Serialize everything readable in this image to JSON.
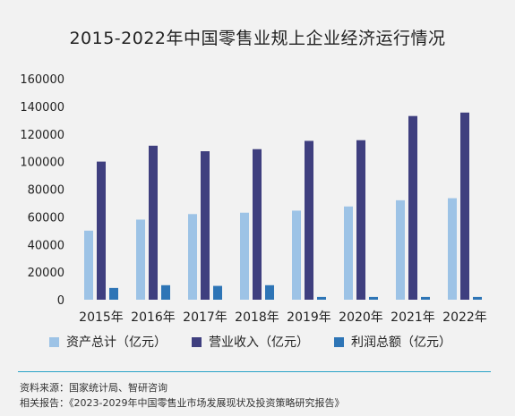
{
  "chart_data": {
    "type": "bar",
    "title": "2015-2022年中国零售业规上企业经济运行情况",
    "categories": [
      "2015年",
      "2016年",
      "2017年",
      "2018年",
      "2019年",
      "2020年",
      "2021年",
      "2022年"
    ],
    "series": [
      {
        "name": "资产总计（亿元）",
        "color": "#9dc3e6",
        "values": [
          50000,
          58000,
          62000,
          63000,
          64500,
          67500,
          72000,
          73500
        ]
      },
      {
        "name": "营业收入（亿元）",
        "color": "#3f3f7f",
        "values": [
          100000,
          111500,
          107500,
          109000,
          115000,
          115500,
          133000,
          135500
        ]
      },
      {
        "name": "利润总额（亿元）",
        "color": "#2e75b6",
        "values": [
          8500,
          10500,
          10000,
          10500,
          2000,
          2000,
          2000,
          2000
        ]
      }
    ],
    "yticks": [
      "160000",
      "140000",
      "120000",
      "100000",
      "80000",
      "60000",
      "40000",
      "20000",
      "0"
    ],
    "ylim": [
      0,
      160000
    ],
    "grid": false,
    "legend": "bottom"
  },
  "source": {
    "line1": "资料来源：国家统计局、智研咨询",
    "line2": "相关报告：《2023-2029年中国零售业市场发展现状及投资策略研究报告》"
  }
}
